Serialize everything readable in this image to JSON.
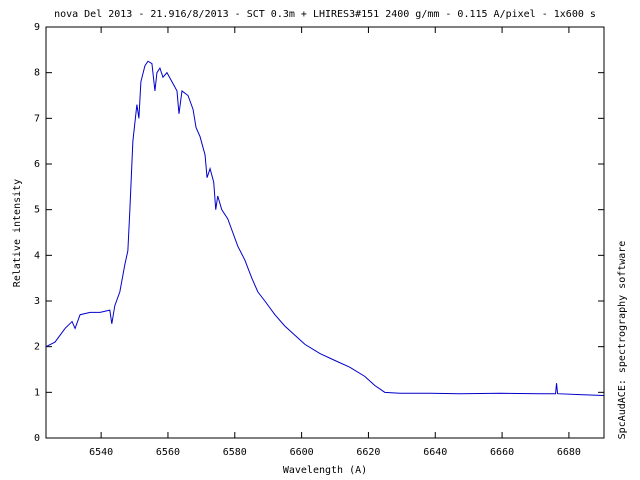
{
  "chart_data": {
    "type": "line",
    "title": "nova Del 2013 - 21.916/8/2013 - SCT 0.3m + LHIRES3#151 2400 g/mm - 0.115 A/pixel - 1x600 s",
    "x_label": "Wavelength (A)",
    "y_label": "Relative intensity",
    "annotation": "SpcAudACE: spectrography software",
    "x": [
      6523.5,
      6526.2,
      6529.2,
      6531.3,
      6532.2,
      6533.7,
      6536.7,
      6539.7,
      6542.6,
      6543.2,
      6544.1,
      6545.6,
      6547.1,
      6548.0,
      6548.6,
      6549.5,
      6550.7,
      6551.3,
      6551.9,
      6553.1,
      6554.0,
      6555.2,
      6556.1,
      6556.7,
      6557.6,
      6558.5,
      6559.7,
      6561.2,
      6562.7,
      6563.3,
      6564.2,
      6566.0,
      6567.5,
      6568.4,
      6569.6,
      6571.1,
      6571.7,
      6572.6,
      6573.7,
      6574.3,
      6574.9,
      6576.1,
      6577.9,
      6579.4,
      6580.9,
      6583.0,
      6585.1,
      6586.9,
      6589.0,
      6592.0,
      6595.0,
      6598.0,
      6601.0,
      6605.5,
      6609.9,
      6614.4,
      6618.9,
      6621.9,
      6624.9,
      6629.4,
      6638.4,
      6647.3,
      6659.3,
      6671.3,
      6676.0,
      6676.3,
      6676.6,
      6683.2,
      6690.4
    ],
    "series": [
      {
        "color": "#0000cc",
        "values": [
          2.0,
          2.1,
          2.4,
          2.55,
          2.4,
          2.7,
          2.75,
          2.75,
          2.8,
          2.5,
          2.9,
          3.2,
          3.8,
          4.1,
          5.0,
          6.5,
          7.3,
          7.0,
          7.8,
          8.15,
          8.25,
          8.2,
          7.6,
          8.0,
          8.1,
          7.9,
          8.0,
          7.8,
          7.6,
          7.1,
          7.6,
          7.5,
          7.2,
          6.8,
          6.6,
          6.2,
          5.7,
          5.9,
          5.6,
          5.0,
          5.3,
          5.0,
          4.8,
          4.5,
          4.2,
          3.9,
          3.5,
          3.2,
          3.0,
          2.7,
          2.45,
          2.25,
          2.05,
          1.85,
          1.7,
          1.55,
          1.35,
          1.15,
          1.0,
          0.98,
          0.98,
          0.97,
          0.98,
          0.97,
          0.97,
          1.2,
          0.97,
          0.95,
          0.93
        ]
      }
    ],
    "xlim": [
      6523.5,
      6690.5
    ],
    "xticks": [
      6540,
      6560,
      6580,
      6600,
      6620,
      6640,
      6660,
      6680
    ],
    "ylim": [
      0,
      9
    ],
    "yticks": [
      0,
      1,
      2,
      3,
      4,
      5,
      6,
      7,
      8,
      9
    ]
  }
}
